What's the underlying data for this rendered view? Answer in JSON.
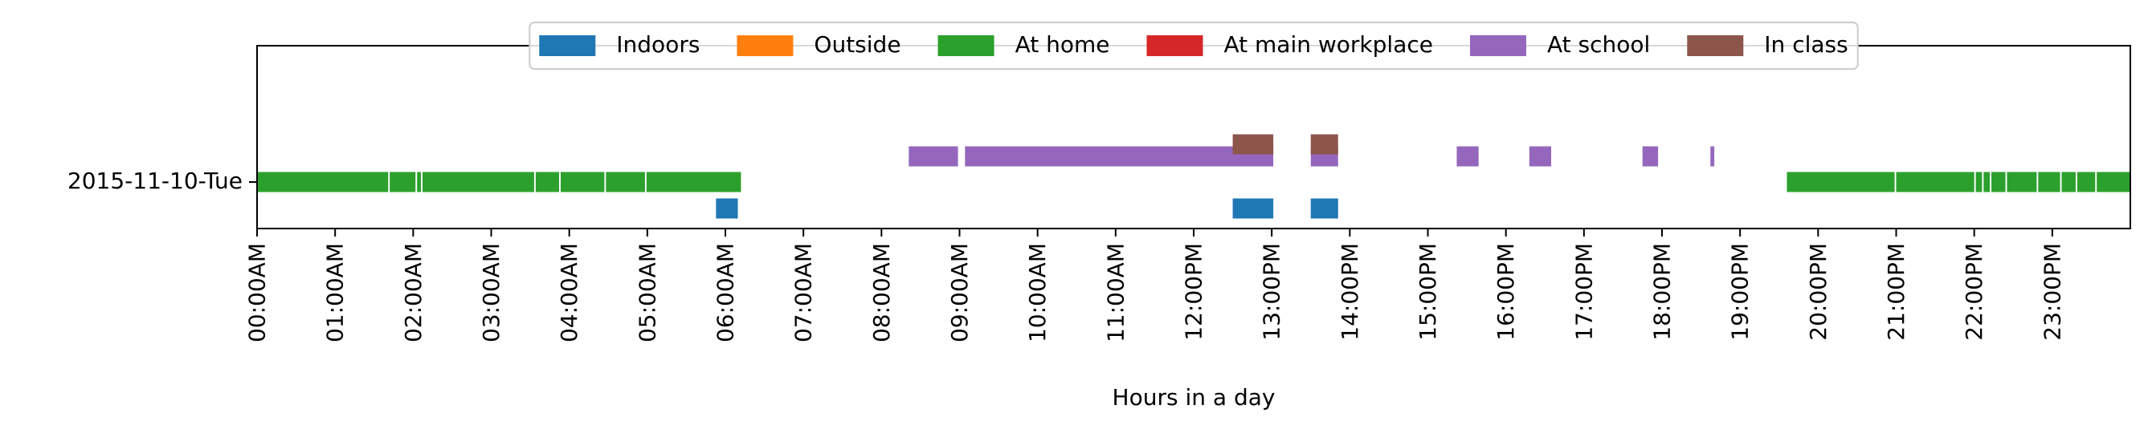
{
  "chart_data": {
    "type": "timeline",
    "title": "",
    "xlabel": "Hours in a day",
    "ylabel": "",
    "xlim_hours": [
      0,
      24
    ],
    "y_category": "2015-11-10-Tue",
    "x_tick_labels": [
      "00:00AM",
      "01:00AM",
      "02:00AM",
      "03:00AM",
      "04:00AM",
      "05:00AM",
      "06:00AM",
      "07:00AM",
      "08:00AM",
      "09:00AM",
      "10:00AM",
      "11:00AM",
      "12:00PM",
      "13:00PM",
      "14:00PM",
      "15:00PM",
      "16:00PM",
      "17:00PM",
      "18:00PM",
      "19:00PM",
      "20:00PM",
      "21:00PM",
      "22:00PM",
      "23:00PM"
    ],
    "legend_position": "top-center",
    "series": [
      {
        "name": "Indoors",
        "color": "#1f77b4",
        "lane": -1,
        "intervals_hours": [
          [
            5.88,
            6.16
          ],
          [
            12.5,
            13.02
          ],
          [
            13.5,
            13.85
          ]
        ]
      },
      {
        "name": "Outside",
        "color": "#ff7f0e",
        "lane": 0,
        "intervals_hours": []
      },
      {
        "name": "At home",
        "color": "#2ca02c",
        "lane": 0,
        "intervals_hours": [
          [
            0.0,
            1.68
          ],
          [
            1.7,
            2.03
          ],
          [
            2.05,
            2.1
          ],
          [
            2.12,
            3.55
          ],
          [
            3.57,
            3.87
          ],
          [
            3.89,
            4.45
          ],
          [
            4.47,
            4.97
          ],
          [
            4.99,
            6.2
          ],
          [
            19.6,
            20.98
          ],
          [
            21.0,
            22.0
          ],
          [
            22.02,
            22.1
          ],
          [
            22.12,
            22.2
          ],
          [
            22.22,
            22.4
          ],
          [
            22.42,
            22.8
          ],
          [
            22.82,
            23.1
          ],
          [
            23.12,
            23.3
          ],
          [
            23.32,
            23.55
          ],
          [
            23.57,
            24.0
          ]
        ]
      },
      {
        "name": "At main workplace",
        "color": "#d62728",
        "lane": 1,
        "intervals_hours": []
      },
      {
        "name": "At school",
        "color": "#9467bd",
        "lane": 1,
        "intervals_hours": [
          [
            8.35,
            8.98
          ],
          [
            9.07,
            13.02
          ],
          [
            13.5,
            13.85
          ],
          [
            15.37,
            15.65
          ],
          [
            16.3,
            16.58
          ],
          [
            17.75,
            17.95
          ],
          [
            18.62,
            18.67
          ]
        ]
      },
      {
        "name": "In class",
        "color": "#8c564b",
        "lane": 2,
        "intervals_hours": [
          [
            12.5,
            13.02
          ],
          [
            13.5,
            13.85
          ]
        ]
      }
    ]
  }
}
